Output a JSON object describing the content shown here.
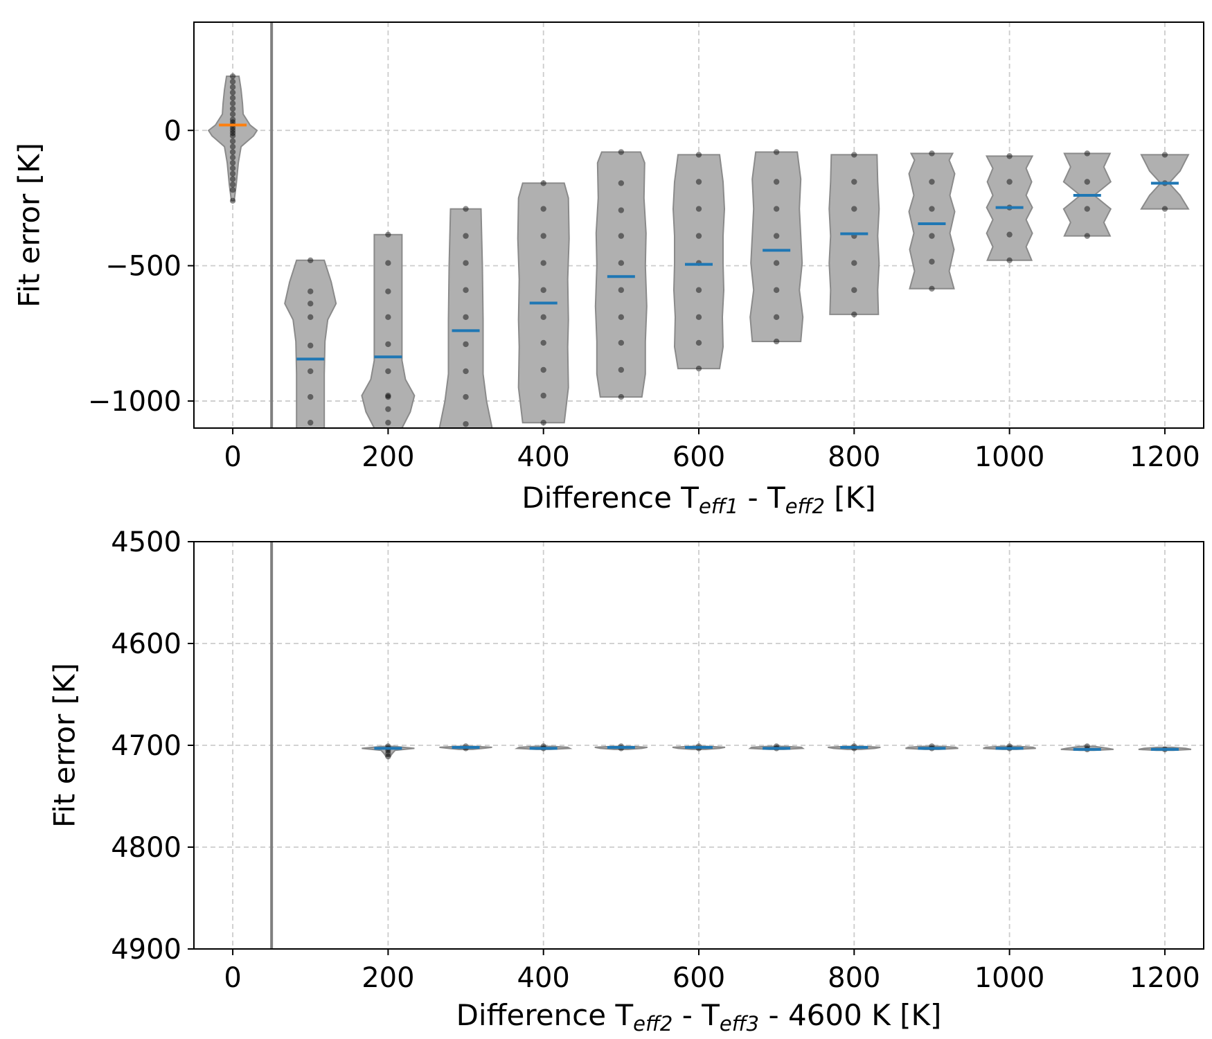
{
  "chart_data": [
    {
      "type": "violin",
      "xlabel": {
        "pre": "Difference T",
        "sub1": "eff1",
        "mid": " - T",
        "sub2": "eff2",
        "post": " [K]"
      },
      "ylabel": "Fit error [K]",
      "xlim": [
        -50,
        1250
      ],
      "ylim": [
        -1100,
        400
      ],
      "xticks": [
        0,
        200,
        400,
        600,
        800,
        1000,
        1200
      ],
      "yticks": [
        0,
        -500,
        -1000
      ],
      "ytick_labels": [
        "0",
        "−500",
        "−1000"
      ],
      "vline_x": 50,
      "grid": true,
      "colors": {
        "violin_fill": "#b0b0b0",
        "violin_edge": "#8a8a8a",
        "mean": "#1f77b4",
        "mean_first": "#ff7f0e",
        "points": "#000000",
        "vline": "#808080",
        "grid": "#cccccc"
      },
      "violins": [
        {
          "x": 0,
          "mean": 20,
          "min": -260,
          "max": 200,
          "first": true,
          "profile": [
            [
              -260,
              2
            ],
            [
              -200,
              5
            ],
            [
              -120,
              8
            ],
            [
              -60,
              12
            ],
            [
              -20,
              30
            ],
            [
              0,
              35
            ],
            [
              20,
              25
            ],
            [
              60,
              15
            ],
            [
              100,
              14
            ],
            [
              150,
              12
            ],
            [
              200,
              9
            ]
          ],
          "points": [
            -260,
            -220,
            -200,
            -180,
            -160,
            -140,
            -120,
            -100,
            -80,
            -60,
            -40,
            -20,
            -10,
            0,
            10,
            20,
            30,
            40,
            60,
            80,
            100,
            120,
            140,
            160,
            180,
            200
          ]
        },
        {
          "x": 100,
          "mean": -845,
          "min": -1100,
          "max": -480,
          "profile": [
            [
              -1100,
              20
            ],
            [
              -900,
              20
            ],
            [
              -780,
              21
            ],
            [
              -700,
              25
            ],
            [
              -640,
              37
            ],
            [
              -560,
              30
            ],
            [
              -480,
              20
            ]
          ],
          "points": [
            -1080,
            -985,
            -890,
            -795,
            -690,
            -640,
            -595,
            -480
          ]
        },
        {
          "x": 200,
          "mean": -837,
          "min": -1100,
          "max": -385,
          "profile": [
            [
              -1100,
              20
            ],
            [
              -1040,
              32
            ],
            [
              -980,
              38
            ],
            [
              -920,
              25
            ],
            [
              -850,
              20
            ],
            [
              -700,
              20
            ],
            [
              -385,
              20
            ]
          ],
          "points": [
            -1080,
            -1030,
            -985,
            -980,
            -890,
            -790,
            -690,
            -595,
            -490,
            -385
          ]
        },
        {
          "x": 300,
          "mean": -740,
          "min": -1100,
          "max": -290,
          "profile": [
            [
              -1100,
              38
            ],
            [
              -1000,
              30
            ],
            [
              -900,
              25
            ],
            [
              -700,
              25
            ],
            [
              -500,
              24
            ],
            [
              -290,
              22
            ]
          ],
          "points": [
            -1085,
            -985,
            -890,
            -790,
            -690,
            -590,
            -490,
            -390,
            -290
          ]
        },
        {
          "x": 400,
          "mean": -638,
          "min": -1080,
          "max": -195,
          "profile": [
            [
              -1080,
              30
            ],
            [
              -950,
              36
            ],
            [
              -800,
              35
            ],
            [
              -700,
              36
            ],
            [
              -550,
              35
            ],
            [
              -400,
              37
            ],
            [
              -250,
              36
            ],
            [
              -195,
              30
            ]
          ],
          "points": [
            -1080,
            -980,
            -885,
            -785,
            -690,
            -590,
            -490,
            -390,
            -290,
            -195
          ]
        },
        {
          "x": 500,
          "mean": -540,
          "min": -985,
          "max": -80,
          "profile": [
            [
              -985,
              30
            ],
            [
              -900,
              35
            ],
            [
              -780,
              35
            ],
            [
              -650,
              37
            ],
            [
              -500,
              35
            ],
            [
              -380,
              36
            ],
            [
              -250,
              33
            ],
            [
              -120,
              34
            ],
            [
              -80,
              28
            ]
          ],
          "points": [
            -985,
            -885,
            -785,
            -690,
            -590,
            -490,
            -390,
            -295,
            -195,
            -80
          ]
        },
        {
          "x": 600,
          "mean": -495,
          "min": -880,
          "max": -90,
          "profile": [
            [
              -880,
              30
            ],
            [
              -800,
              35
            ],
            [
              -690,
              34
            ],
            [
              -590,
              36
            ],
            [
              -490,
              35
            ],
            [
              -390,
              35
            ],
            [
              -290,
              37
            ],
            [
              -190,
              35
            ],
            [
              -90,
              30
            ]
          ],
          "points": [
            -880,
            -785,
            -690,
            -590,
            -490,
            -390,
            -290,
            -190,
            -90
          ]
        },
        {
          "x": 700,
          "mean": -443,
          "min": -780,
          "max": -80,
          "profile": [
            [
              -780,
              35
            ],
            [
              -690,
              38
            ],
            [
              -590,
              33
            ],
            [
              -490,
              37
            ],
            [
              -390,
              35
            ],
            [
              -290,
              33
            ],
            [
              -180,
              35
            ],
            [
              -80,
              30
            ]
          ],
          "points": [
            -780,
            -690,
            -590,
            -490,
            -390,
            -290,
            -190,
            -80
          ]
        },
        {
          "x": 800,
          "mean": -382,
          "min": -680,
          "max": -90,
          "profile": [
            [
              -680,
              35
            ],
            [
              -590,
              34
            ],
            [
              -490,
              36
            ],
            [
              -390,
              34
            ],
            [
              -290,
              36
            ],
            [
              -190,
              34
            ],
            [
              -90,
              33
            ]
          ],
          "points": [
            -680,
            -590,
            -490,
            -390,
            -290,
            -190,
            -90
          ]
        },
        {
          "x": 900,
          "mean": -345,
          "min": -585,
          "max": -85,
          "profile": [
            [
              -585,
              32
            ],
            [
              -520,
              25
            ],
            [
              -440,
              32
            ],
            [
              -380,
              26
            ],
            [
              -300,
              33
            ],
            [
              -240,
              26
            ],
            [
              -160,
              33
            ],
            [
              -110,
              25
            ],
            [
              -85,
              30
            ]
          ],
          "points": [
            -585,
            -485,
            -390,
            -290,
            -190,
            -85
          ]
        },
        {
          "x": 1000,
          "mean": -285,
          "min": -480,
          "max": -95,
          "profile": [
            [
              -480,
              32
            ],
            [
              -430,
              24
            ],
            [
              -380,
              33
            ],
            [
              -330,
              24
            ],
            [
              -285,
              33
            ],
            [
              -240,
              24
            ],
            [
              -190,
              32
            ],
            [
              -140,
              24
            ],
            [
              -95,
              33
            ]
          ],
          "points": [
            -480,
            -385,
            -285,
            -190,
            -95
          ]
        },
        {
          "x": 1100,
          "mean": -240,
          "min": -390,
          "max": -85,
          "profile": [
            [
              -390,
              33
            ],
            [
              -340,
              24
            ],
            [
              -290,
              34
            ],
            [
              -240,
              10
            ],
            [
              -190,
              34
            ],
            [
              -135,
              24
            ],
            [
              -85,
              33
            ]
          ],
          "points": [
            -390,
            -290,
            -190,
            -85
          ]
        },
        {
          "x": 1200,
          "mean": -195,
          "min": -290,
          "max": -90,
          "profile": [
            [
              -290,
              34
            ],
            [
              -240,
              22
            ],
            [
              -195,
              6
            ],
            [
              -150,
              22
            ],
            [
              -90,
              34
            ]
          ],
          "points": [
            -290,
            -195,
            -90
          ]
        }
      ]
    },
    {
      "type": "violin",
      "xlabel": {
        "pre": "Difference T",
        "sub1": "eff2",
        "mid": " - T",
        "sub2": "eff3",
        "post": " - 4600 K [K]"
      },
      "ylabel": "Fit error [K]",
      "xlim": [
        -50,
        1250
      ],
      "ylim": [
        4900,
        4500
      ],
      "xticks": [
        0,
        200,
        400,
        600,
        800,
        1000,
        1200
      ],
      "yticks": [
        4500,
        4600,
        4700,
        4800,
        4900
      ],
      "ytick_labels": [
        "4500",
        "4600",
        "4700",
        "4800",
        "4900"
      ],
      "vline_x": 50,
      "grid": true,
      "violins": [
        {
          "x": 200,
          "mean": 4703,
          "min": 4701,
          "max": 4711,
          "profile": [
            [
              4701,
              8
            ],
            [
              4703,
              38
            ],
            [
              4705,
              10
            ],
            [
              4708,
              6
            ],
            [
              4711,
              3
            ]
          ],
          "points": [
            4701,
            4703,
            4705,
            4708,
            4711
          ]
        },
        {
          "x": 300,
          "mean": 4702,
          "min": 4701,
          "max": 4704,
          "profile": [
            [
              4701,
              12
            ],
            [
              4702,
              38
            ],
            [
              4703,
              25
            ],
            [
              4704,
              10
            ]
          ],
          "points": [
            4701,
            4703
          ]
        },
        {
          "x": 400,
          "mean": 4703,
          "min": 4701,
          "max": 4704,
          "profile": [
            [
              4701,
              12
            ],
            [
              4702,
              35
            ],
            [
              4703,
              38
            ],
            [
              4704,
              10
            ]
          ],
          "points": [
            4701,
            4703
          ]
        },
        {
          "x": 500,
          "mean": 4702,
          "min": 4701,
          "max": 4704,
          "profile": [
            [
              4701,
              12
            ],
            [
              4702,
              38
            ],
            [
              4703,
              30
            ],
            [
              4704,
              10
            ]
          ],
          "points": [
            4701,
            4703
          ]
        },
        {
          "x": 600,
          "mean": 4702,
          "min": 4701,
          "max": 4704,
          "profile": [
            [
              4701,
              12
            ],
            [
              4702,
              38
            ],
            [
              4703,
              30
            ],
            [
              4704,
              10
            ]
          ],
          "points": [
            4701,
            4703
          ]
        },
        {
          "x": 700,
          "mean": 4703,
          "min": 4701,
          "max": 4704,
          "profile": [
            [
              4701,
              12
            ],
            [
              4702,
              36
            ],
            [
              4703,
              38
            ],
            [
              4704,
              10
            ]
          ],
          "points": [
            4701,
            4703
          ]
        },
        {
          "x": 800,
          "mean": 4702,
          "min": 4701,
          "max": 4704,
          "profile": [
            [
              4701,
              12
            ],
            [
              4702,
              38
            ],
            [
              4703,
              30
            ],
            [
              4704,
              10
            ]
          ],
          "points": [
            4701,
            4703
          ]
        },
        {
          "x": 900,
          "mean": 4703,
          "min": 4701,
          "max": 4704,
          "profile": [
            [
              4701,
              12
            ],
            [
              4702,
              34
            ],
            [
              4703,
              38
            ],
            [
              4704,
              10
            ]
          ],
          "points": [
            4701,
            4703
          ]
        },
        {
          "x": 1000,
          "mean": 4703,
          "min": 4701,
          "max": 4704,
          "profile": [
            [
              4701,
              12
            ],
            [
              4702,
              34
            ],
            [
              4703,
              38
            ],
            [
              4704,
              10
            ]
          ],
          "points": [
            4701,
            4703
          ]
        },
        {
          "x": 1100,
          "mean": 4704,
          "min": 4701,
          "max": 4705,
          "profile": [
            [
              4701,
              10
            ],
            [
              4703,
              30
            ],
            [
              4704,
              38
            ],
            [
              4705,
              10
            ]
          ],
          "points": [
            4701,
            4704
          ]
        },
        {
          "x": 1200,
          "mean": 4704,
          "min": 4702,
          "max": 4705,
          "profile": [
            [
              4702,
              10
            ],
            [
              4703,
              30
            ],
            [
              4704,
              38
            ],
            [
              4705,
              12
            ]
          ],
          "points": [
            4704
          ]
        }
      ]
    }
  ]
}
